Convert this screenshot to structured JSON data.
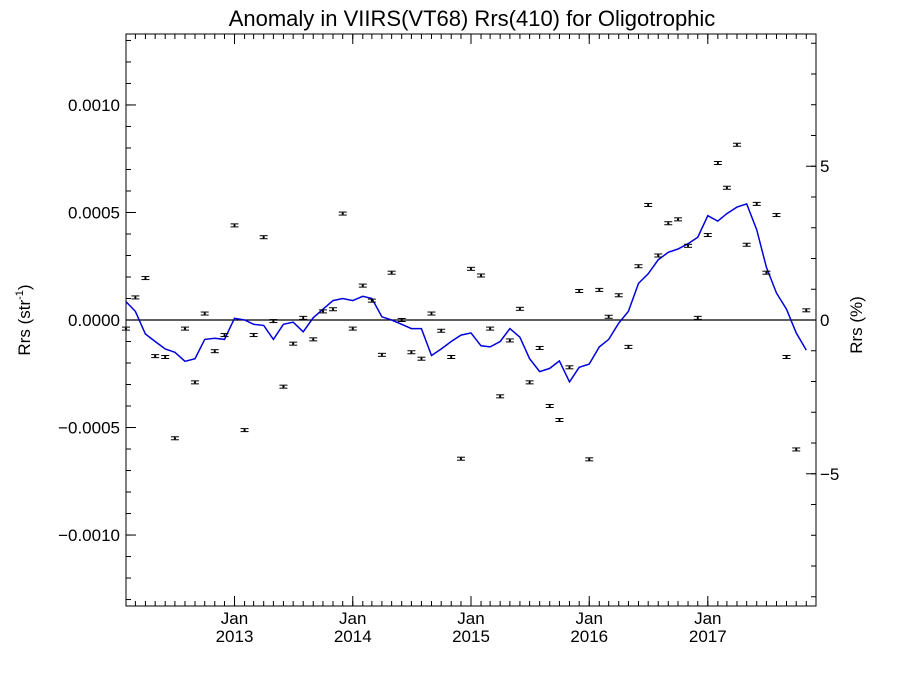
{
  "chart_data": {
    "type": "scatter",
    "title": "Anomaly in VIIRS(VT68) Rrs(410) for Oligotrophic",
    "ylabel_main": "Rrs (str",
    "ylabel_sup": "-1",
    "ylabel_close": ")",
    "y2label": "Rrs (%)",
    "x_range": [
      "2012-02-01",
      "2017-12-01"
    ],
    "ylim": [
      -0.00133,
      0.00133
    ],
    "y2lim": [
      -9.3,
      9.3
    ],
    "grid": false,
    "y_ticks": [
      {
        "value": 0.001,
        "label": "0.0010"
      },
      {
        "value": 0.0005,
        "label": "0.0005"
      },
      {
        "value": 0.0,
        "label": "0.0000"
      },
      {
        "value": -0.0005,
        "label": "−0.0005"
      },
      {
        "value": -0.001,
        "label": "−0.0010"
      }
    ],
    "y2_ticks": [
      {
        "value": 5,
        "label": "5"
      },
      {
        "value": 0,
        "label": "0"
      },
      {
        "value": -5,
        "label": "−5"
      }
    ],
    "x_ticks": [
      {
        "date": "2013-01-01",
        "month": "Jan",
        "year": "2013"
      },
      {
        "date": "2014-01-01",
        "month": "Jan",
        "year": "2014"
      },
      {
        "date": "2015-01-01",
        "month": "Jan",
        "year": "2015"
      },
      {
        "date": "2016-01-01",
        "month": "Jan",
        "year": "2016"
      },
      {
        "date": "2017-01-01",
        "month": "Jan",
        "year": "2017"
      }
    ],
    "reference_line": 0.0,
    "colors": {
      "points": "#000000",
      "smoothed": "#0000dd",
      "axes": "#000000"
    },
    "points": [
      {
        "date": "2012-02-01",
        "y": -4e-05
      },
      {
        "date": "2012-03-01",
        "y": 0.000105
      },
      {
        "date": "2012-04-01",
        "y": 0.000195
      },
      {
        "date": "2012-05-01",
        "y": -0.000168
      },
      {
        "date": "2012-06-01",
        "y": -0.000172
      },
      {
        "date": "2012-07-01",
        "y": -0.00055
      },
      {
        "date": "2012-08-01",
        "y": -4e-05
      },
      {
        "date": "2012-09-01",
        "y": -0.00029
      },
      {
        "date": "2012-10-01",
        "y": 3e-05
      },
      {
        "date": "2012-11-01",
        "y": -0.000145
      },
      {
        "date": "2012-12-01",
        "y": -7e-05
      },
      {
        "date": "2013-01-01",
        "y": 0.00044
      },
      {
        "date": "2013-02-01",
        "y": -0.000512
      },
      {
        "date": "2013-03-01",
        "y": -7e-05
      },
      {
        "date": "2013-04-01",
        "y": 0.000385
      },
      {
        "date": "2013-05-01",
        "y": -5e-06
      },
      {
        "date": "2013-06-01",
        "y": -0.00031
      },
      {
        "date": "2013-07-01",
        "y": -0.00011
      },
      {
        "date": "2013-08-01",
        "y": 1e-05
      },
      {
        "date": "2013-09-01",
        "y": -9e-05
      },
      {
        "date": "2013-10-01",
        "y": 4e-05
      },
      {
        "date": "2013-11-01",
        "y": 5e-05
      },
      {
        "date": "2013-12-01",
        "y": 0.000495
      },
      {
        "date": "2014-01-01",
        "y": -4e-05
      },
      {
        "date": "2014-02-01",
        "y": 0.00016
      },
      {
        "date": "2014-03-01",
        "y": 9e-05
      },
      {
        "date": "2014-04-01",
        "y": -0.000162
      },
      {
        "date": "2014-05-01",
        "y": 0.00022
      },
      {
        "date": "2014-06-01",
        "y": 0.0
      },
      {
        "date": "2014-07-01",
        "y": -0.00015
      },
      {
        "date": "2014-08-01",
        "y": -0.00018
      },
      {
        "date": "2014-09-01",
        "y": 3e-05
      },
      {
        "date": "2014-10-01",
        "y": -5e-05
      },
      {
        "date": "2014-11-01",
        "y": -0.000172
      },
      {
        "date": "2014-12-01",
        "y": -0.000645
      },
      {
        "date": "2015-01-01",
        "y": 0.000238
      },
      {
        "date": "2015-02-01",
        "y": 0.000207
      },
      {
        "date": "2015-03-01",
        "y": -4e-05
      },
      {
        "date": "2015-04-01",
        "y": -0.000355
      },
      {
        "date": "2015-05-01",
        "y": -9.5e-05
      },
      {
        "date": "2015-06-01",
        "y": 5.2e-05
      },
      {
        "date": "2015-07-01",
        "y": -0.00029
      },
      {
        "date": "2015-08-01",
        "y": -0.00013
      },
      {
        "date": "2015-09-01",
        "y": -0.0004
      },
      {
        "date": "2015-10-01",
        "y": -0.000465
      },
      {
        "date": "2015-11-01",
        "y": -0.00022
      },
      {
        "date": "2015-12-01",
        "y": 0.000135
      },
      {
        "date": "2016-01-01",
        "y": -0.000648
      },
      {
        "date": "2016-02-01",
        "y": 0.00014
      },
      {
        "date": "2016-03-01",
        "y": 1.5e-05
      },
      {
        "date": "2016-04-01",
        "y": 0.000115
      },
      {
        "date": "2016-05-01",
        "y": -0.000125
      },
      {
        "date": "2016-06-01",
        "y": 0.00025
      },
      {
        "date": "2016-07-01",
        "y": 0.000535
      },
      {
        "date": "2016-08-01",
        "y": 0.0003
      },
      {
        "date": "2016-09-01",
        "y": 0.00045
      },
      {
        "date": "2016-10-01",
        "y": 0.000468
      },
      {
        "date": "2016-11-01",
        "y": 0.000345
      },
      {
        "date": "2016-12-01",
        "y": 1e-05
      },
      {
        "date": "2017-01-01",
        "y": 0.000395
      },
      {
        "date": "2017-02-01",
        "y": 0.00073
      },
      {
        "date": "2017-03-01",
        "y": 0.000615
      },
      {
        "date": "2017-04-01",
        "y": 0.000815
      },
      {
        "date": "2017-05-01",
        "y": 0.00035
      },
      {
        "date": "2017-06-01",
        "y": 0.00054
      },
      {
        "date": "2017-07-01",
        "y": 0.00022
      },
      {
        "date": "2017-08-01",
        "y": 0.000488
      },
      {
        "date": "2017-09-01",
        "y": -0.000172
      },
      {
        "date": "2017-10-01",
        "y": -0.000602
      },
      {
        "date": "2017-11-01",
        "y": 4.5e-05
      }
    ],
    "smoothed": [
      {
        "date": "2012-02-01",
        "y": 8.5e-05
      },
      {
        "date": "2012-03-01",
        "y": 4e-05
      },
      {
        "date": "2012-04-01",
        "y": -6.5e-05
      },
      {
        "date": "2012-05-01",
        "y": -0.0001
      },
      {
        "date": "2012-06-01",
        "y": -0.000135
      },
      {
        "date": "2012-07-01",
        "y": -0.00015
      },
      {
        "date": "2012-08-01",
        "y": -0.000192
      },
      {
        "date": "2012-09-01",
        "y": -0.00018
      },
      {
        "date": "2012-10-01",
        "y": -9e-05
      },
      {
        "date": "2012-11-01",
        "y": -8.5e-05
      },
      {
        "date": "2012-12-01",
        "y": -9e-05
      },
      {
        "date": "2013-01-01",
        "y": 8e-06
      },
      {
        "date": "2013-02-01",
        "y": 0.0
      },
      {
        "date": "2013-03-01",
        "y": -2e-05
      },
      {
        "date": "2013-04-01",
        "y": -2.5e-05
      },
      {
        "date": "2013-05-01",
        "y": -9e-05
      },
      {
        "date": "2013-06-01",
        "y": -2e-05
      },
      {
        "date": "2013-07-01",
        "y": -1e-05
      },
      {
        "date": "2013-08-01",
        "y": -5.5e-05
      },
      {
        "date": "2013-09-01",
        "y": 1e-05
      },
      {
        "date": "2013-10-01",
        "y": 5e-05
      },
      {
        "date": "2013-11-01",
        "y": 9e-05
      },
      {
        "date": "2013-12-01",
        "y": 0.0001
      },
      {
        "date": "2014-01-01",
        "y": 9e-05
      },
      {
        "date": "2014-02-01",
        "y": 0.00011
      },
      {
        "date": "2014-03-01",
        "y": 0.0001
      },
      {
        "date": "2014-04-01",
        "y": 1.5e-05
      },
      {
        "date": "2014-05-01",
        "y": 0.0
      },
      {
        "date": "2014-06-01",
        "y": -2e-05
      },
      {
        "date": "2014-07-01",
        "y": -4e-05
      },
      {
        "date": "2014-08-01",
        "y": -4e-05
      },
      {
        "date": "2014-09-01",
        "y": -0.000165
      },
      {
        "date": "2014-10-01",
        "y": -0.000135
      },
      {
        "date": "2014-11-01",
        "y": -0.0001
      },
      {
        "date": "2014-12-01",
        "y": -7e-05
      },
      {
        "date": "2015-01-01",
        "y": -6e-05
      },
      {
        "date": "2015-02-01",
        "y": -0.00012
      },
      {
        "date": "2015-03-01",
        "y": -0.000125
      },
      {
        "date": "2015-04-01",
        "y": -0.0001
      },
      {
        "date": "2015-05-01",
        "y": -4e-05
      },
      {
        "date": "2015-06-01",
        "y": -8e-05
      },
      {
        "date": "2015-07-01",
        "y": -0.00018
      },
      {
        "date": "2015-08-01",
        "y": -0.00024
      },
      {
        "date": "2015-09-01",
        "y": -0.000225
      },
      {
        "date": "2015-10-01",
        "y": -0.00019
      },
      {
        "date": "2015-11-01",
        "y": -0.000288
      },
      {
        "date": "2015-12-01",
        "y": -0.00022
      },
      {
        "date": "2016-01-01",
        "y": -0.000205
      },
      {
        "date": "2016-02-01",
        "y": -0.000125
      },
      {
        "date": "2016-03-01",
        "y": -9e-05
      },
      {
        "date": "2016-04-01",
        "y": -1.5e-05
      },
      {
        "date": "2016-05-01",
        "y": 4e-05
      },
      {
        "date": "2016-06-01",
        "y": 0.00017
      },
      {
        "date": "2016-07-01",
        "y": 0.000215
      },
      {
        "date": "2016-08-01",
        "y": 0.00028
      },
      {
        "date": "2016-09-01",
        "y": 0.000315
      },
      {
        "date": "2016-10-01",
        "y": 0.00033
      },
      {
        "date": "2016-11-01",
        "y": 0.000355
      },
      {
        "date": "2016-12-01",
        "y": 0.000385
      },
      {
        "date": "2017-01-01",
        "y": 0.000485
      },
      {
        "date": "2017-02-01",
        "y": 0.00046
      },
      {
        "date": "2017-03-01",
        "y": 0.000495
      },
      {
        "date": "2017-04-01",
        "y": 0.000525
      },
      {
        "date": "2017-05-01",
        "y": 0.00054
      },
      {
        "date": "2017-06-01",
        "y": 0.00042
      },
      {
        "date": "2017-07-01",
        "y": 0.000245
      },
      {
        "date": "2017-08-01",
        "y": 0.000125
      },
      {
        "date": "2017-09-01",
        "y": 5e-05
      },
      {
        "date": "2017-10-01",
        "y": -6e-05
      },
      {
        "date": "2017-11-01",
        "y": -0.00014
      }
    ]
  }
}
